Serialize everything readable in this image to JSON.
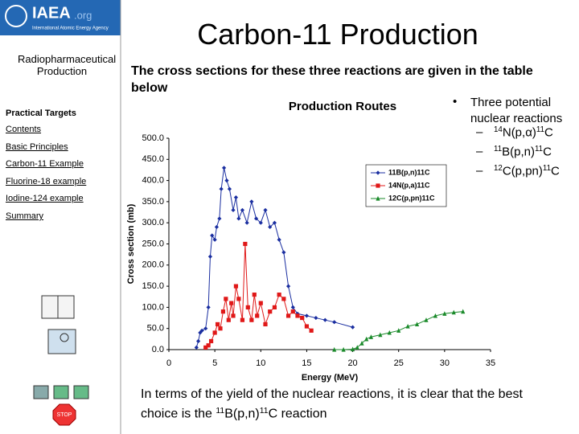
{
  "logo": {
    "name": "IAEA",
    "suffix": ".org",
    "subtitle": "International Atomic Energy Agency"
  },
  "sidebar": {
    "title": "Radiopharmaceutical Production",
    "section": "Practical Targets",
    "links": [
      "Contents",
      "Basic Principles",
      "Carbon-11 Example",
      "Fluorine-18 example",
      "Iodine-124 example",
      "Summary"
    ],
    "stop_label": "STOP"
  },
  "slide": {
    "title": "Carbon-11 Production",
    "intro": "The cross sections for these three reactions are given in the table below",
    "bullet": "Three potential nuclear reactions",
    "reactions": [
      [
        "14",
        "N(p,α)",
        "11",
        "C"
      ],
      [
        "11",
        "B(p,n)",
        "11",
        "C"
      ],
      [
        "12",
        "C(p,pn)",
        "11",
        "C"
      ]
    ],
    "conclusion": [
      "In terms of the yield of the nuclear reactions, it is clear that the best choice is the ",
      "11",
      "B(p,n)",
      "11",
      "C reaction"
    ]
  },
  "chart_data": {
    "type": "line",
    "title": "Production Routes",
    "x_label": "Energy (MeV)",
    "y_label": "Cross section (mb)",
    "xlim": [
      0,
      35
    ],
    "xticks": [
      0,
      5,
      10,
      15,
      20,
      25,
      30,
      35
    ],
    "ylim": [
      0,
      500
    ],
    "yticks": [
      {
        "value": 0,
        "label": "0.0"
      },
      {
        "value": 50,
        "label": "50.0"
      },
      {
        "value": 100,
        "label": "100.0"
      },
      {
        "value": 150,
        "label": "150.0"
      },
      {
        "value": 200,
        "label": "200.0"
      },
      {
        "value": 250,
        "label": "250.0"
      },
      {
        "value": 300,
        "label": "300.0"
      },
      {
        "value": 350,
        "label": "350.0"
      },
      {
        "value": 400,
        "label": "400.0"
      },
      {
        "value": 450,
        "label": "450.0"
      },
      {
        "value": 500,
        "label": "500.0"
      }
    ],
    "legend": "upper right",
    "series": [
      {
        "name": "11B(p,n)11C",
        "color": "#1a2ea0",
        "marker": "diamond",
        "x": [
          3.0,
          3.2,
          3.4,
          3.6,
          4.0,
          4.3,
          4.5,
          4.7,
          5.0,
          5.2,
          5.5,
          5.7,
          6.0,
          6.3,
          6.6,
          7.0,
          7.3,
          7.6,
          8.0,
          8.5,
          9.0,
          9.5,
          10.0,
          10.5,
          11.0,
          11.5,
          12.0,
          12.5,
          13.0,
          13.5,
          14.0,
          15.0,
          16.0,
          17.0,
          18.0,
          20.0
        ],
        "values": [
          5,
          20,
          40,
          45,
          50,
          100,
          220,
          270,
          260,
          290,
          310,
          380,
          430,
          400,
          380,
          330,
          360,
          310,
          330,
          300,
          350,
          310,
          300,
          330,
          290,
          300,
          260,
          230,
          150,
          100,
          85,
          80,
          75,
          70,
          65,
          53
        ]
      },
      {
        "name": "14N(p,a)11C",
        "color": "#e01818",
        "marker": "square",
        "x": [
          4.0,
          4.3,
          4.6,
          5.0,
          5.3,
          5.6,
          5.9,
          6.2,
          6.5,
          6.8,
          7.0,
          7.3,
          7.6,
          8.0,
          8.3,
          8.6,
          9.0,
          9.3,
          9.6,
          10.0,
          10.5,
          11.0,
          11.5,
          12.0,
          12.5,
          13.0,
          13.5,
          14.0,
          14.5,
          15.0,
          15.5
        ],
        "values": [
          5,
          10,
          20,
          40,
          60,
          50,
          90,
          120,
          70,
          110,
          80,
          150,
          120,
          70,
          250,
          100,
          70,
          130,
          80,
          110,
          60,
          90,
          100,
          130,
          120,
          80,
          90,
          80,
          75,
          55,
          45
        ]
      },
      {
        "name": "12C(p,pn)11C",
        "color": "#1a8a2a",
        "marker": "triangle",
        "x": [
          18,
          19,
          20,
          20.5,
          21,
          21.5,
          22,
          23,
          24,
          25,
          26,
          27,
          28,
          29,
          30,
          31,
          32
        ],
        "values": [
          0,
          0,
          1,
          5,
          15,
          25,
          30,
          35,
          40,
          45,
          55,
          60,
          70,
          80,
          85,
          88,
          90
        ]
      }
    ]
  }
}
